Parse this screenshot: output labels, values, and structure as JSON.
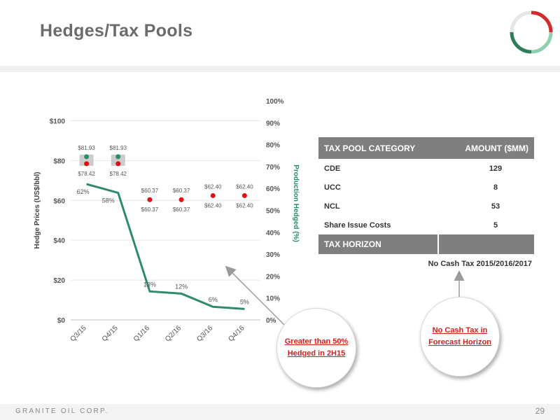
{
  "title": "Hedges/Tax Pools",
  "footer": {
    "company": "GRANITE OIL CORP.",
    "page_number": "29"
  },
  "colors": {
    "line": "#2e8b6a",
    "ceiling_dot": "#2e8b6a",
    "floor_dot": "#e01010",
    "marker_box": "#cccccc",
    "table_header": "#7f7f7f",
    "callout_text": "#d32020"
  },
  "chart_data": {
    "type": "line",
    "categories": [
      "Q3/15",
      "Q4/15",
      "Q1/16",
      "Q2/16",
      "Q3/16",
      "Q4/16"
    ],
    "series": [
      {
        "name": "",
        "axis": "right",
        "values": [
          62,
          58,
          13,
          12,
          6,
          5
        ],
        "labels": [
          "62%",
          "58%",
          "13%",
          "12%",
          "6%",
          "5%"
        ]
      }
    ],
    "hedge_prices": {
      "ceiling": [
        81.93,
        81.93,
        60.37,
        60.37,
        62.4,
        62.4
      ],
      "floor": [
        78.42,
        78.42,
        60.37,
        60.37,
        62.4,
        62.4
      ],
      "ceiling_labels": [
        "$81.93",
        "$81.93",
        "$60.37",
        "$60.37",
        "$62.40",
        "$62.40"
      ],
      "floor_labels": [
        "$78.42",
        "$78.42",
        "$60.37",
        "$60.37",
        "$62.40",
        "$62.40"
      ],
      "shaded_box": [
        true,
        true,
        false,
        false,
        false,
        false
      ]
    },
    "ylabel": "Hedge Prices (US$/bbl)",
    "ylabel_right": "Production Hedged (%)",
    "ylim": [
      0,
      110
    ],
    "ylim_right": [
      0,
      100
    ],
    "yticks": [
      0,
      20,
      40,
      60,
      80,
      100
    ],
    "ytick_labels": [
      "$0",
      "$20",
      "$40",
      "$60",
      "$80",
      "$100"
    ],
    "yticks_right": [
      0,
      10,
      20,
      30,
      40,
      50,
      60,
      70,
      80,
      90,
      100
    ],
    "ytick_labels_right": [
      "0%",
      "10%",
      "20%",
      "30%",
      "40%",
      "50%",
      "60%",
      "70%",
      "80%",
      "90%",
      "100%"
    ],
    "grid": true
  },
  "tax_table": {
    "header": [
      "TAX POOL CATEGORY",
      "AMOUNT ($MM)"
    ],
    "rows": [
      {
        "category": "CDE",
        "amount": "129"
      },
      {
        "category": "UCC",
        "amount": "8"
      },
      {
        "category": "NCL",
        "amount": "53"
      },
      {
        "category": "Share Issue Costs",
        "amount": "5"
      }
    ],
    "horizon_label": "TAX HORIZON",
    "horizon_value": "No Cash Tax 2015/2016/2017"
  },
  "callouts": {
    "hedged_line1": "Greater than 50%",
    "hedged_line2": "Hedged in 2H15",
    "tax_line1": "No Cash Tax in",
    "tax_line2": "Forecast Horizon"
  }
}
